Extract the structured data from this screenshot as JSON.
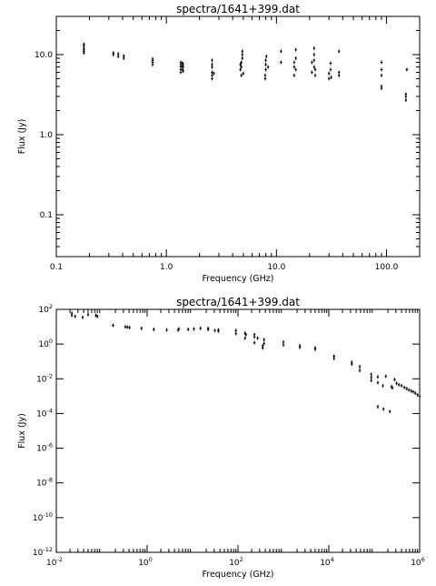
{
  "chart_data": [
    {
      "type": "scatter",
      "title": "spectra/1641+399.dat",
      "xlabel": "Frequency (GHz)",
      "ylabel": "Flux (Jy)",
      "xscale": "log",
      "yscale": "log",
      "xlim": [
        0.1,
        200
      ],
      "ylim": [
        0.03,
        30
      ],
      "grid": false,
      "xticks": [
        {
          "v": 0.1,
          "label": "0.1"
        },
        {
          "v": 1,
          "label": "1.0"
        },
        {
          "v": 10,
          "label": "10.0"
        },
        {
          "v": 100,
          "label": "100.0"
        }
      ],
      "yticks": [
        {
          "v": 0.1,
          "label": "0.1"
        },
        {
          "v": 1,
          "label": "1.0"
        },
        {
          "v": 10,
          "label": "10.0"
        }
      ],
      "x": [
        0.178,
        0.178,
        0.178,
        0.178,
        0.178,
        0.178,
        0.33,
        0.33,
        0.365,
        0.365,
        0.41,
        0.41,
        0.75,
        0.75,
        0.75,
        0.75,
        1.35,
        1.35,
        1.35,
        1.35,
        1.35,
        1.4,
        1.4,
        1.4,
        1.42,
        1.42,
        1.42,
        2.6,
        2.6,
        2.6,
        2.6,
        2.6,
        2.6,
        2.7,
        4.7,
        4.7,
        4.8,
        4.8,
        4.8,
        4.9,
        4.9,
        4.9,
        5.0,
        7.9,
        7.9,
        8.0,
        8.0,
        8.0,
        8.1,
        8.4,
        11.0,
        11.0,
        14.5,
        14.5,
        14.5,
        15.0,
        15.0,
        15.0,
        21.0,
        21.0,
        22.0,
        22.0,
        22.0,
        22.0,
        22.5,
        22.5,
        30.0,
        30.0,
        31.0,
        31.0,
        31.4,
        37.0,
        37.0,
        37.0,
        90.0,
        90.0,
        90.0,
        90.0,
        90.0,
        150.0,
        150.0,
        150.0,
        153.0
      ],
      "y": [
        10.5,
        11.0,
        11.5,
        12.0,
        12.8,
        13.5,
        10.0,
        10.5,
        9.5,
        10.2,
        9.0,
        9.6,
        7.5,
        8.0,
        8.5,
        8.8,
        6.0,
        6.5,
        7.0,
        7.5,
        8.0,
        6.5,
        7.2,
        7.8,
        6.2,
        7.0,
        7.6,
        5.0,
        5.5,
        6.0,
        7.0,
        7.5,
        8.5,
        5.8,
        6.5,
        7.5,
        5.5,
        7.0,
        8.0,
        9.0,
        10.0,
        11.0,
        5.8,
        5.0,
        5.5,
        6.5,
        7.5,
        8.5,
        9.5,
        7.0,
        8.0,
        11.0,
        5.5,
        7.0,
        8.0,
        9.0,
        11.5,
        6.5,
        6.0,
        8.0,
        7.0,
        8.5,
        10.0,
        12.0,
        5.5,
        6.5,
        5.0,
        5.8,
        6.5,
        7.8,
        5.2,
        5.5,
        6.0,
        11.0,
        3.8,
        4.0,
        5.5,
        6.5,
        8.0,
        2.7,
        3.0,
        3.2,
        6.5
      ]
    },
    {
      "type": "scatter",
      "title": "spectra/1641+399.dat",
      "xlabel": "Frequency (GHz)",
      "ylabel": "Flux (Jy)",
      "xscale": "log",
      "yscale": "log",
      "xlim": [
        0.01,
        1000000
      ],
      "ylim": [
        1e-12,
        100
      ],
      "grid": false,
      "xticks": [
        {
          "v": 0.01,
          "base": "10",
          "exp": "-2"
        },
        {
          "v": 1,
          "base": "10",
          "exp": "0"
        },
        {
          "v": 100,
          "base": "10",
          "exp": "2"
        },
        {
          "v": 10000,
          "base": "10",
          "exp": "4"
        },
        {
          "v": 1000000,
          "base": "10",
          "exp": "6"
        }
      ],
      "yticks": [
        {
          "v": 100,
          "base": "10",
          "exp": "2"
        },
        {
          "v": 1,
          "base": "10",
          "exp": "0"
        },
        {
          "v": 0.01,
          "base": "10",
          "exp": "-2"
        },
        {
          "v": 0.0001,
          "base": "10",
          "exp": "-4"
        },
        {
          "v": 1e-06,
          "base": "10",
          "exp": "-6"
        },
        {
          "v": 1e-08,
          "base": "10",
          "exp": "-8"
        },
        {
          "v": 1e-10,
          "base": "10",
          "exp": "-10"
        },
        {
          "v": 1e-12,
          "base": "10",
          "exp": "-12"
        }
      ],
      "x": [
        0.022,
        0.022,
        0.026,
        0.038,
        0.05,
        0.074,
        0.08,
        0.178,
        0.33,
        0.365,
        0.41,
        0.75,
        1.4,
        2.7,
        4.8,
        5.0,
        8.0,
        10.7,
        15.0,
        22.0,
        22.0,
        31.0,
        37.0,
        37.0,
        90.0,
        90.0,
        143.0,
        143.0,
        150.0,
        230.0,
        230.0,
        230.0,
        270.0,
        350.0,
        350.0,
        375.0,
        375.0,
        1000.0,
        1000.0,
        2300.0,
        2300.0,
        5000.0,
        5000.0,
        13000.0,
        13000.0,
        32000.0,
        32000.0,
        48000.0,
        48000.0,
        86000.0,
        86000.0,
        86000.0,
        120000.0,
        120000.0,
        155000.0,
        180000.0,
        250000.0,
        280000.0,
        240000.0,
        310000.0,
        350000.0,
        400000.0,
        460000.0,
        520000.0,
        580000.0,
        650000.0,
        720000.0,
        800000.0,
        900000.0,
        1000000.0,
        120000.0,
        160000.0,
        220000.0
      ],
      "y": [
        45,
        60,
        40,
        35,
        50,
        45,
        40,
        12,
        10,
        9.5,
        9,
        8,
        7,
        6.5,
        6.5,
        7.5,
        7,
        7.5,
        8,
        7,
        8,
        6,
        5.5,
        6.5,
        6,
        4,
        4.2,
        2.2,
        3.5,
        2.6,
        1.2,
        3.5,
        2.2,
        0.6,
        0.8,
        1.1,
        1.8,
        0.9,
        1.3,
        0.65,
        0.8,
        0.5,
        0.6,
        0.15,
        0.2,
        0.07,
        0.09,
        0.03,
        0.05,
        0.012,
        0.018,
        0.008,
        0.006,
        0.013,
        0.004,
        0.014,
        0.003,
        0.009,
        0.0035,
        0.0055,
        0.0045,
        0.004,
        0.0032,
        0.0027,
        0.0023,
        0.002,
        0.0018,
        0.0015,
        0.0012,
        0.001,
        0.00025,
        0.00018,
        0.00013
      ]
    }
  ]
}
